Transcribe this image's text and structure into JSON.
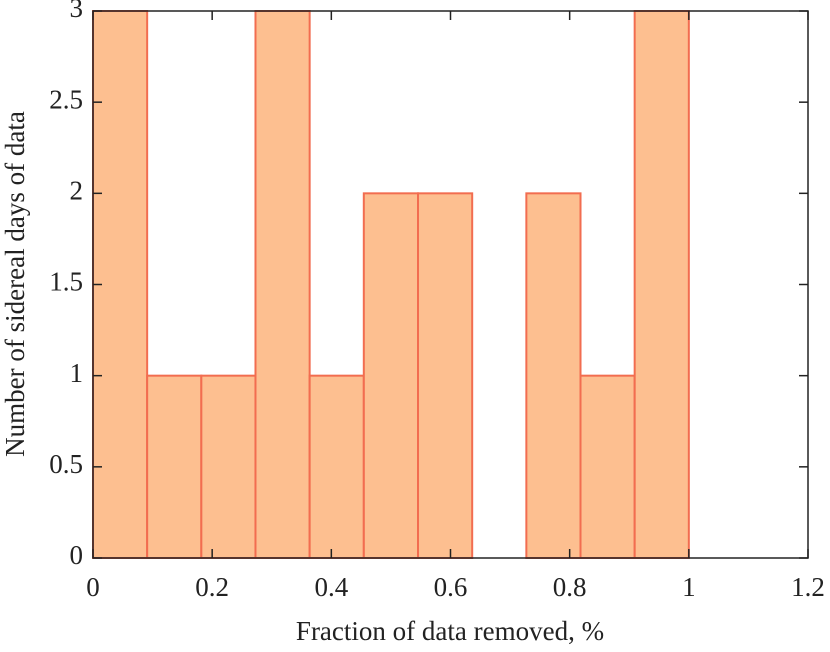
{
  "chart_data": {
    "type": "histogram",
    "xlabel": "Fraction of data removed, %",
    "ylabel": "Number of sidereal days of data",
    "bins": [
      0,
      0.0909,
      0.1818,
      0.2727,
      0.3636,
      0.4545,
      0.5455,
      0.6364,
      0.7273,
      0.8182,
      0.9091,
      1
    ],
    "values": [
      3,
      1,
      1,
      3,
      1,
      2,
      2,
      0,
      2,
      1,
      3
    ],
    "color": "#fdbf90",
    "edgecolor": "#f26d50",
    "xlim": [
      0,
      1.2
    ],
    "xticks": [
      0,
      0.2,
      0.4,
      0.6,
      0.8,
      1,
      1.2
    ],
    "ylim": [
      0,
      3
    ],
    "yticks": [
      0,
      0.5,
      1,
      1.5,
      2,
      2.5,
      3
    ]
  }
}
